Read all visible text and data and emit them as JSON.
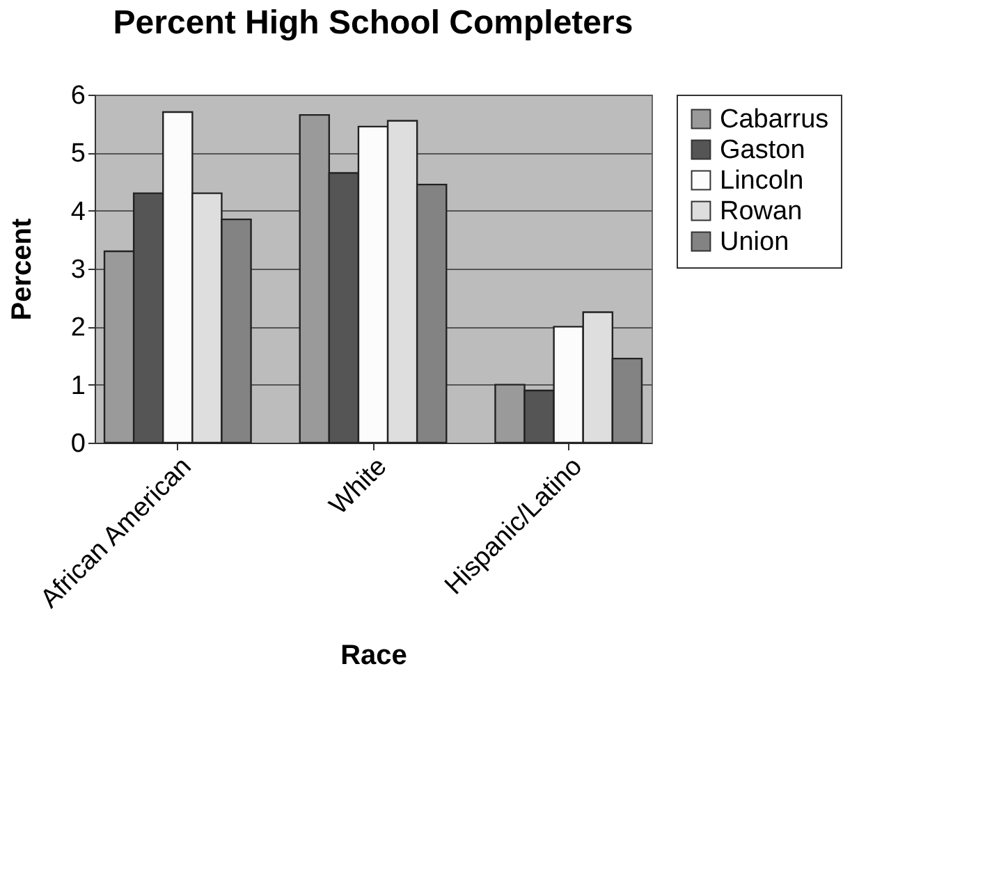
{
  "chart_data": {
    "type": "bar",
    "title": "Percent High School Completers",
    "xlabel": "Race",
    "ylabel": "Percent",
    "categories": [
      "African American",
      "White",
      "Hispanic/Latino"
    ],
    "series": [
      {
        "name": "Cabarrus",
        "color": "#9a9a9a",
        "values": [
          3.3,
          5.65,
          1.0
        ]
      },
      {
        "name": "Gaston",
        "color": "#555555",
        "values": [
          4.3,
          4.65,
          0.9
        ]
      },
      {
        "name": "Lincoln",
        "color": "#fcfcfc",
        "values": [
          5.7,
          5.45,
          2.0
        ]
      },
      {
        "name": "Rowan",
        "color": "#dedede",
        "values": [
          4.3,
          5.55,
          2.25
        ]
      },
      {
        "name": "Union",
        "color": "#838383",
        "values": [
          3.85,
          4.45,
          1.45
        ]
      }
    ],
    "ylim": [
      0,
      6
    ],
    "yticks": [
      0,
      1,
      2,
      3,
      4,
      5,
      6
    ],
    "grid": "y",
    "legend": "right"
  }
}
